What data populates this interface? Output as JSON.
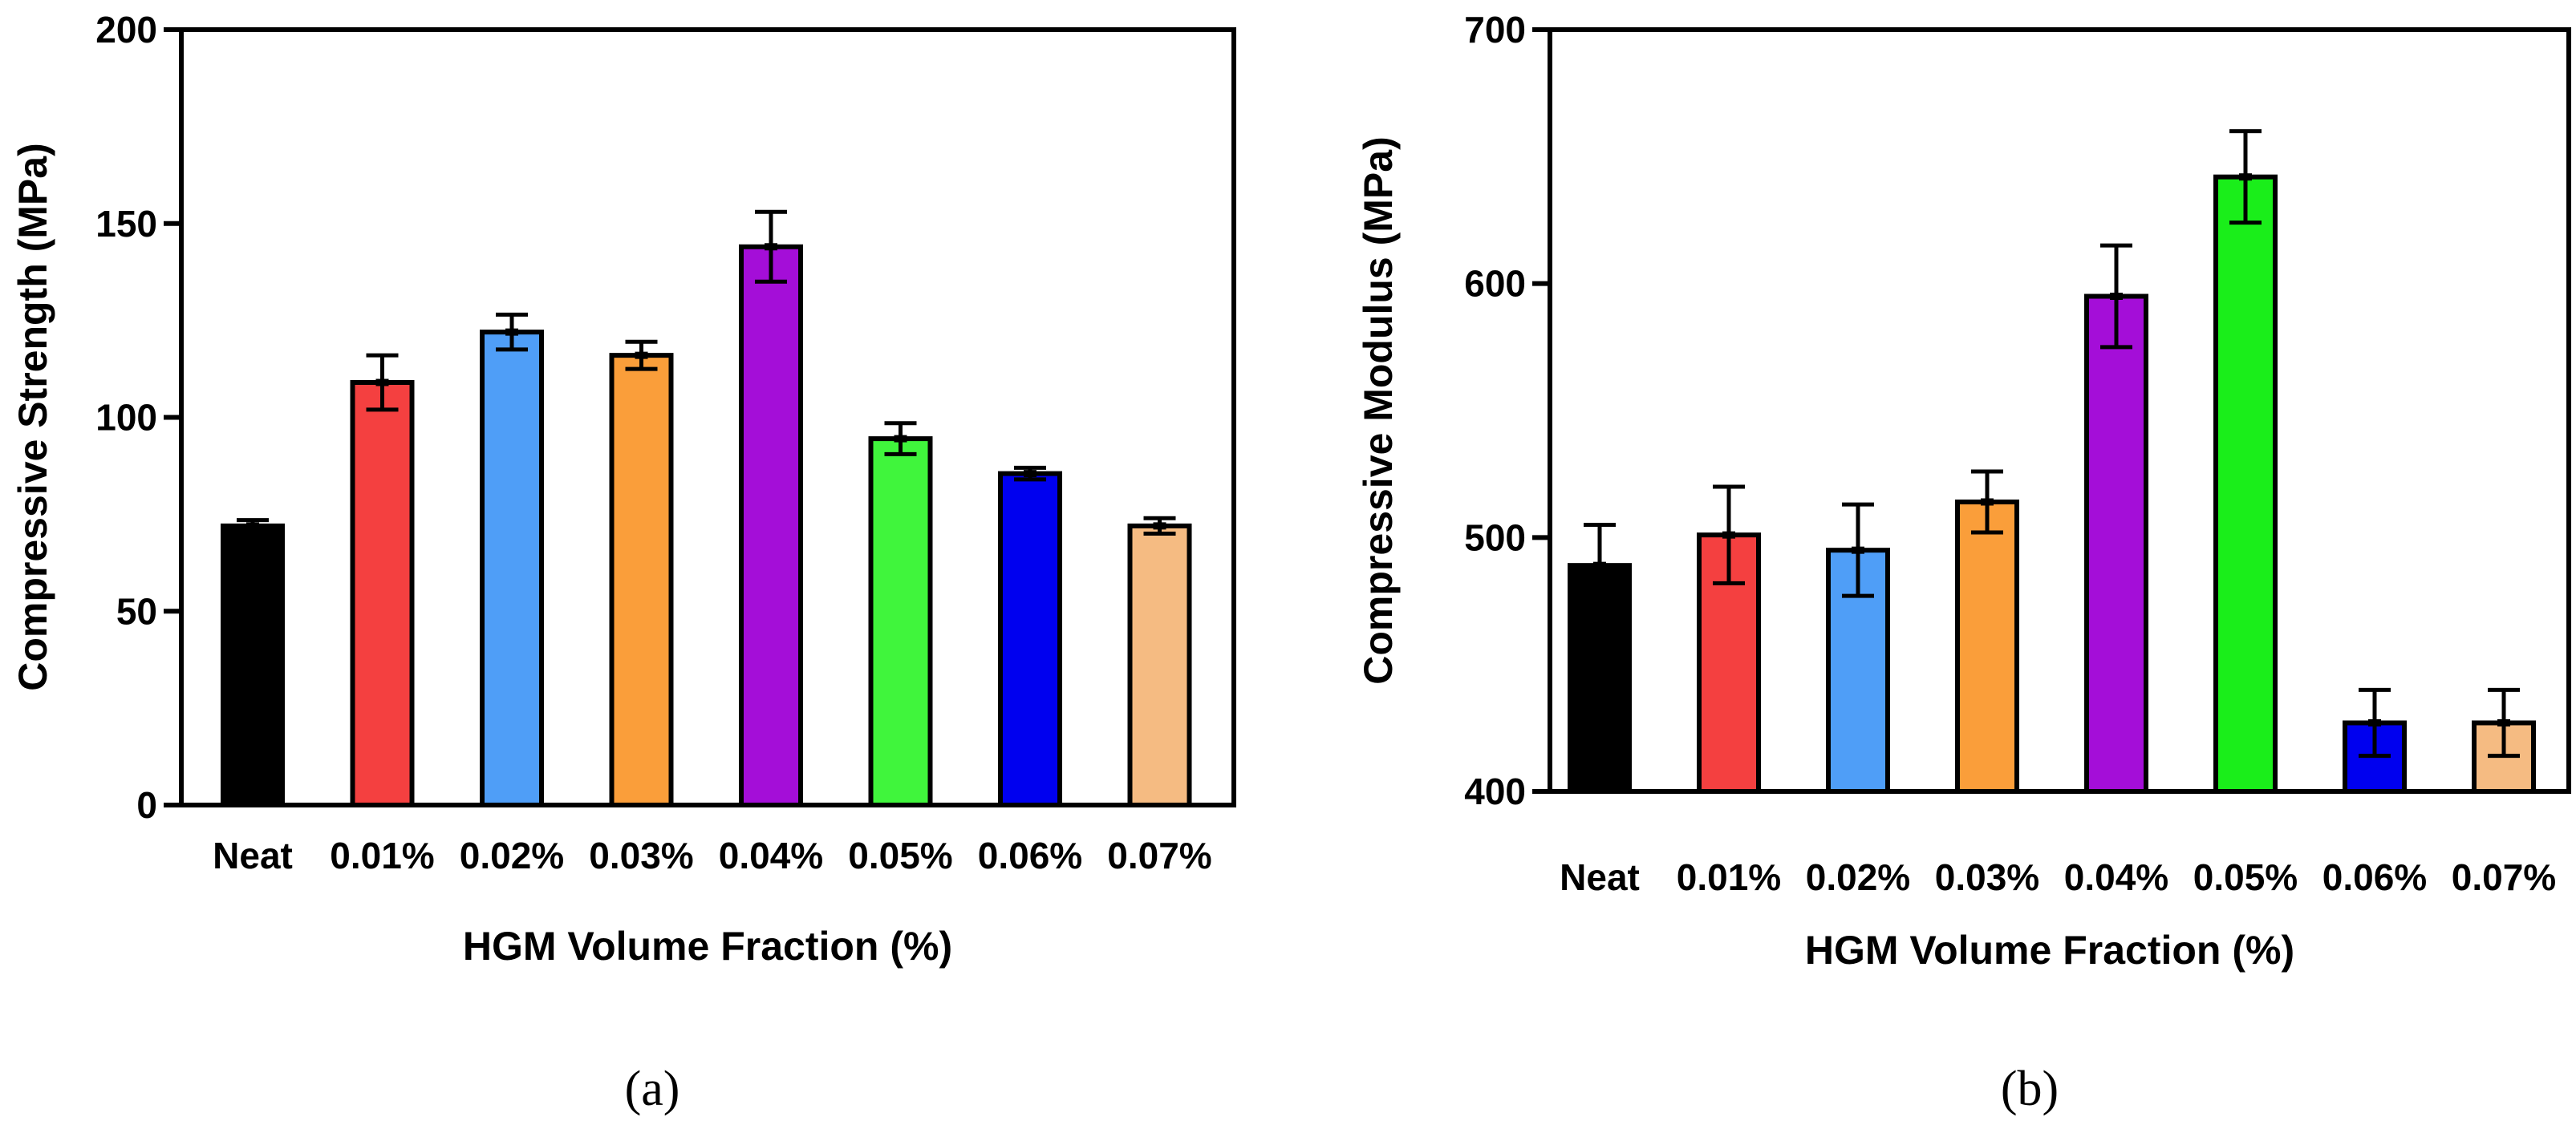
{
  "chart_data": [
    {
      "panel_label": "(a)",
      "type": "bar",
      "categories": [
        "Neat",
        "0.01%",
        "0.02%",
        "0.03%",
        "0.04%",
        "0.05%",
        "0.06%",
        "0.07%"
      ],
      "values": [
        72,
        109,
        122,
        116,
        144,
        94.5,
        85.5,
        72
      ],
      "errors": [
        1.5,
        7,
        4.5,
        3.5,
        9,
        4,
        1.5,
        2
      ],
      "colors": [
        "#000000",
        "#f44040",
        "#4f9ef7",
        "#fa9e3a",
        "#a40ed8",
        "#40f53c",
        "#0000ef",
        "#f5bb82"
      ],
      "xlabel": "HGM Volume Fraction (%)",
      "ylabel": "Compressive Strength (MPa)",
      "ylim": [
        0,
        200
      ],
      "yticks": [
        0,
        50,
        100,
        150,
        200
      ],
      "grid": false,
      "legend": "none"
    },
    {
      "panel_label": "(b)",
      "type": "bar",
      "categories": [
        "Neat",
        "0.01%",
        "0.02%",
        "0.03%",
        "0.04%",
        "0.05%",
        "0.06%",
        "0.07%"
      ],
      "values": [
        489,
        501,
        495,
        514,
        595,
        642,
        427,
        427
      ],
      "errors": [
        16,
        19,
        18,
        12,
        20,
        18,
        13,
        13
      ],
      "colors": [
        "#000000",
        "#f44040",
        "#4f9ef7",
        "#fa9e3a",
        "#a40ed8",
        "#1aee1a",
        "#0000ef",
        "#f5bb82"
      ],
      "xlabel": "HGM Volume Fraction (%)",
      "ylabel": "Compressive Modulus (MPa)",
      "ylim": [
        400,
        700
      ],
      "yticks": [
        400,
        500,
        600,
        700
      ],
      "grid": false,
      "legend": "none"
    }
  ]
}
